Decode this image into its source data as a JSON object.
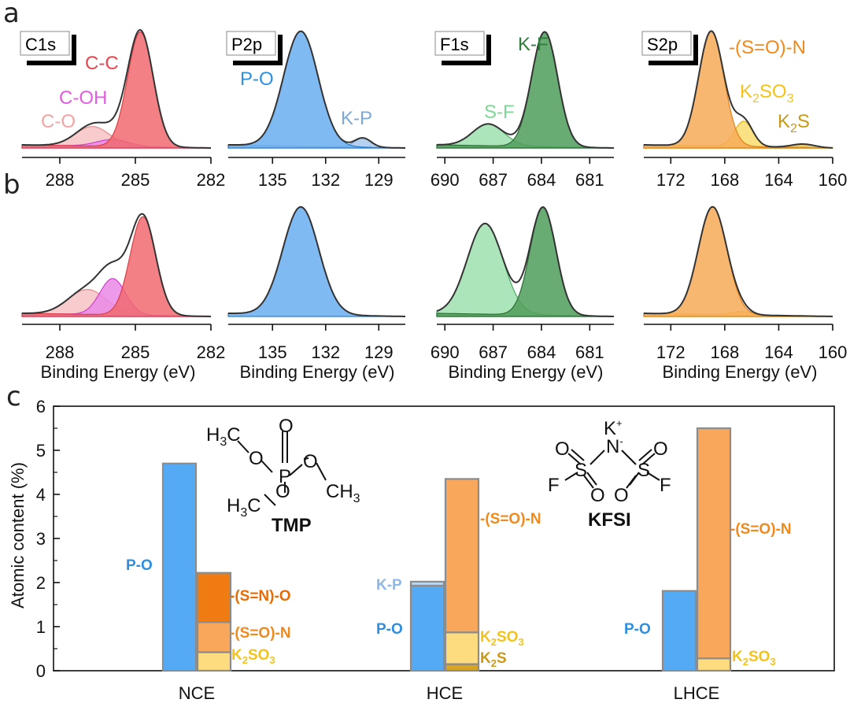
{
  "panels": {
    "a_letter": "a",
    "b_letter": "b",
    "c_letter": "c"
  },
  "xps_axis_title": "Binding Energy (eV)",
  "xps_charts": [
    {
      "element": "C1s",
      "xlim": [
        289.5,
        282
      ],
      "ticks": [
        288,
        285,
        282
      ],
      "envelope_color": "#333333",
      "labels_a": [
        {
          "text": "C-C",
          "color": "#e8464f"
        },
        {
          "text": "C-OH",
          "color": "#e25ce0"
        },
        {
          "text": "C-O",
          "color": "#f2a3a3"
        }
      ],
      "components_a": [
        {
          "name": "C-C",
          "center": 284.8,
          "fwhm": 1.2,
          "height": 1.0,
          "fill": "#f06a70",
          "stroke": "#d84048"
        },
        {
          "name": "C-OH",
          "center": 285.9,
          "fwhm": 1.5,
          "height": 0.06,
          "fill": "#ea88e8",
          "stroke": "#d040cf"
        },
        {
          "name": "C-O",
          "center": 286.7,
          "fwhm": 1.6,
          "height": 0.17,
          "fill": "#f7c3c3",
          "stroke": "#e48a8a"
        }
      ],
      "components_b": [
        {
          "name": "C-C",
          "center": 284.7,
          "fwhm": 1.2,
          "height": 0.87,
          "fill": "#f06a70",
          "stroke": "#d84048"
        },
        {
          "name": "C-OH",
          "center": 285.9,
          "fwhm": 1.2,
          "height": 0.32,
          "fill": "#ea88e8",
          "stroke": "#d040cf"
        },
        {
          "name": "C-O",
          "center": 286.9,
          "fwhm": 1.8,
          "height": 0.22,
          "fill": "#f7c3c3",
          "stroke": "#e48a8a"
        }
      ]
    },
    {
      "element": "P2p",
      "xlim": [
        137.5,
        127.5
      ],
      "ticks": [
        135,
        132,
        129
      ],
      "envelope_color": "#333333",
      "labels_a": [
        {
          "text": "P-O",
          "color": "#2e8fe0"
        },
        {
          "text": "K-P",
          "color": "#7ca9d8"
        }
      ],
      "components_a": [
        {
          "name": "P-O",
          "center": 133.4,
          "fwhm": 2.3,
          "height": 1.0,
          "fill": "#6aaef0",
          "stroke": "#2a7fd0"
        },
        {
          "name": "K-P",
          "center": 129.9,
          "fwhm": 1.1,
          "height": 0.08,
          "fill": "#a9c8ec",
          "stroke": "#6d9bd0"
        }
      ],
      "components_b": [
        {
          "name": "P-O",
          "center": 133.4,
          "fwhm": 2.4,
          "height": 0.95,
          "fill": "#6aaef0",
          "stroke": "#2a7fd0"
        }
      ]
    },
    {
      "element": "F1s",
      "xlim": [
        690.5,
        679.5
      ],
      "ticks": [
        690,
        687,
        684,
        681
      ],
      "envelope_color": "#333333",
      "labels_a": [
        {
          "text": "K-F",
          "color": "#2f7d3a"
        },
        {
          "text": "S-F",
          "color": "#7ed697"
        }
      ],
      "components_a": [
        {
          "name": "K-F",
          "center": 683.8,
          "fwhm": 1.9,
          "height": 1.0,
          "fill": "#4f9e5a",
          "stroke": "#2c6e35"
        },
        {
          "name": "S-F",
          "center": 687.3,
          "fwhm": 2.3,
          "height": 0.19,
          "fill": "#9fe0af",
          "stroke": "#4faa66"
        }
      ],
      "components_b": [
        {
          "name": "K-F",
          "center": 683.9,
          "fwhm": 1.9,
          "height": 0.95,
          "fill": "#4f9e5a",
          "stroke": "#2c6e35"
        },
        {
          "name": "S-F",
          "center": 687.5,
          "fwhm": 2.6,
          "height": 0.8,
          "fill": "#9fe0af",
          "stroke": "#4faa66"
        }
      ]
    },
    {
      "element": "S2p",
      "xlim": [
        174,
        160
      ],
      "ticks": [
        172,
        168,
        164,
        160
      ],
      "envelope_color": "#333333",
      "labels_a": [
        {
          "text": "-(S=O)-N",
          "color": "#f08a1c"
        },
        {
          "text": "K2SO3",
          "color": "#f3c31c"
        },
        {
          "text": "K2S",
          "color": "#c89a18"
        }
      ],
      "components_a": [
        {
          "name": "-(S=O)-N",
          "center": 169.0,
          "fwhm": 2.2,
          "height": 1.0,
          "fill": "#f7aa57",
          "stroke": "#e08018"
        },
        {
          "name": "K2SO3",
          "center": 166.6,
          "fwhm": 1.6,
          "height": 0.22,
          "fill": "#f9dc6e",
          "stroke": "#e0b41a"
        },
        {
          "name": "K2S",
          "center": 162.2,
          "fwhm": 2.0,
          "height": 0.03,
          "fill": "#e7c560",
          "stroke": "#b88a10"
        }
      ],
      "components_b": [
        {
          "name": "-(S=O)-N",
          "center": 168.9,
          "fwhm": 2.5,
          "height": 0.95,
          "fill": "#f7aa57",
          "stroke": "#e08018"
        },
        {
          "name": "K2SO3",
          "center": 166.8,
          "fwhm": 1.6,
          "height": 0.03,
          "fill": "#f9dc6e",
          "stroke": "#e0b41a"
        }
      ]
    }
  ],
  "chart_data": {
    "type": "bar",
    "ylabel": "Atomic content (%)",
    "ylim": [
      0,
      6
    ],
    "yticks": [
      0,
      1,
      2,
      3,
      4,
      5,
      6
    ],
    "categories": [
      "NCE",
      "HCE",
      "LHCE"
    ],
    "groups": [
      {
        "category": "NCE",
        "p_bar": [
          {
            "name": "P-O",
            "value": 4.7,
            "color": "#55aaf5"
          }
        ],
        "s_bar": [
          {
            "name": "K2SO3",
            "value": 0.42,
            "color": "#fddc80"
          },
          {
            "name": "-(S=O)-N",
            "value": 0.68,
            "color": "#f9a75a"
          },
          {
            "name": "-(S=N)-O",
            "value": 1.12,
            "color": "#f07b12"
          }
        ],
        "labels": [
          {
            "text": "P-O",
            "color": "#2e8fe0"
          },
          {
            "text": "-(S=N)-O",
            "color": "#e86c05"
          },
          {
            "text": "-(S=O)-N",
            "color": "#f08a1c"
          },
          {
            "text": "K2SO3",
            "color": "#f3c31c"
          }
        ]
      },
      {
        "category": "HCE",
        "p_bar": [
          {
            "name": "P-O",
            "value": 1.93,
            "color": "#55aaf5"
          },
          {
            "name": "K-P",
            "value": 0.09,
            "color": "#b9d6f2"
          }
        ],
        "s_bar": [
          {
            "name": "K2S",
            "value": 0.15,
            "color": "#d9a520"
          },
          {
            "name": "K2SO3",
            "value": 0.72,
            "color": "#fddc80"
          },
          {
            "name": "-(S=O)-N",
            "value": 3.48,
            "color": "#f9a75a"
          }
        ],
        "labels": [
          {
            "text": "K-P",
            "color": "#8ab8e8"
          },
          {
            "text": "P-O",
            "color": "#2e8fe0"
          },
          {
            "text": "-(S=O)-N",
            "color": "#f08a1c"
          },
          {
            "text": "K2SO3",
            "color": "#f3c31c"
          },
          {
            "text": "K2S",
            "color": "#c89a18"
          }
        ]
      },
      {
        "category": "LHCE",
        "p_bar": [
          {
            "name": "P-O",
            "value": 1.81,
            "color": "#55aaf5"
          }
        ],
        "s_bar": [
          {
            "name": "K2SO3",
            "value": 0.28,
            "color": "#fddc80"
          },
          {
            "name": "-(S=O)-N",
            "value": 5.22,
            "color": "#f9a75a"
          }
        ],
        "labels": [
          {
            "text": "P-O",
            "color": "#2e8fe0"
          },
          {
            "text": "-(S=O)-N",
            "color": "#f08a1c"
          },
          {
            "text": "K2SO3",
            "color": "#f3c31c"
          }
        ]
      }
    ]
  },
  "molecules": {
    "tmp": {
      "name": "TMP",
      "atoms": [
        "H3C",
        "O",
        "P",
        "O",
        "O",
        "CH3",
        "O",
        "H3C"
      ]
    },
    "kfsi": {
      "name": "KFSI",
      "atoms": [
        "K+",
        "N-",
        "S",
        "S",
        "O",
        "O",
        "O",
        "O",
        "F",
        "F"
      ]
    }
  }
}
